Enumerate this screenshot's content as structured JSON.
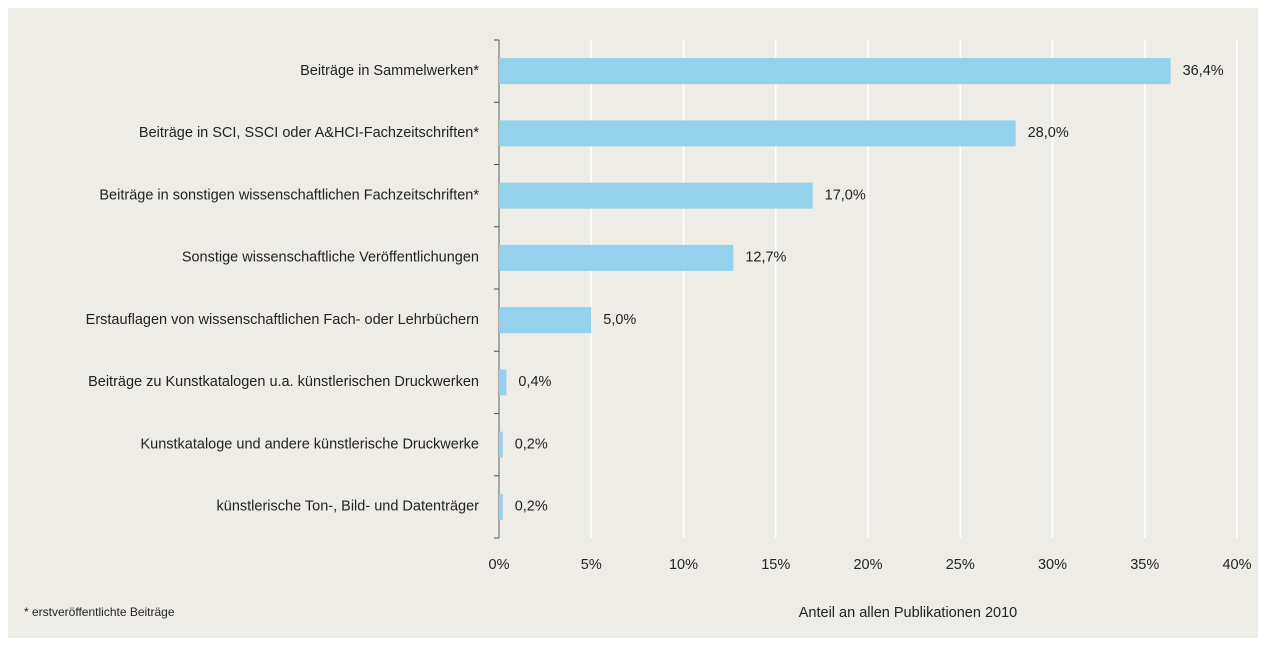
{
  "chart_data": {
    "type": "barh",
    "categories": [
      "Beiträge in Sammelwerken*",
      "Beiträge in SCI, SSCI oder A&HCI-Fachzeitschriften*",
      "Beiträge in sonstigen wissenschaftlichen Fachzeitschriften*",
      "Sonstige wissenschaftliche Veröffentlichungen",
      "Erstauflagen von wissenschaftlichen Fach- oder Lehrbüchern",
      "Beiträge zu Kunstkatalogen u.a. künstlerischen Druckwerken",
      "Kunstkataloge und andere künstlerische Druckwerke",
      "künstlerische Ton-, Bild- und Datenträger"
    ],
    "values": [
      36.4,
      28.0,
      17.0,
      12.7,
      5.0,
      0.4,
      0.2,
      0.2
    ],
    "value_labels": [
      "36,4%",
      "28,0%",
      "17,0%",
      "12,7%",
      "5,0%",
      "0,4%",
      "0,2%",
      "0,2%"
    ],
    "color": "#93d1ed",
    "xlim": [
      0,
      40
    ],
    "xticks": [
      {
        "value": 0,
        "label": "0%"
      },
      {
        "value": 5,
        "label": "5%"
      },
      {
        "value": 10,
        "label": "10%"
      },
      {
        "value": 15,
        "label": "15%"
      },
      {
        "value": 20,
        "label": "20%"
      },
      {
        "value": 25,
        "label": "25%"
      },
      {
        "value": 30,
        "label": "30%"
      },
      {
        "value": 35,
        "label": "35%"
      },
      {
        "value": 40,
        "label": "40%"
      }
    ],
    "xlabel": "Anteil an allen Publikationen 2010",
    "footnote": "* erstveröffentlichte Beiträge",
    "grid": true
  }
}
